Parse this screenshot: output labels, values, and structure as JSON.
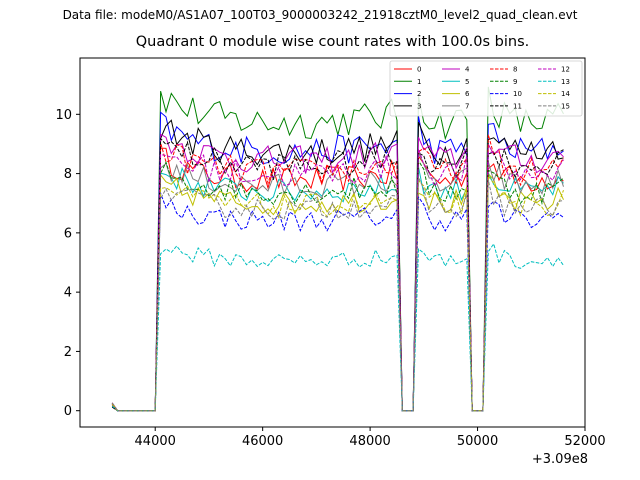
{
  "suptitle": "Data file: modeM0/AS1A07_100T03_9000003242_21918cztM0_level2_quad_clean.evt",
  "chart_data": {
    "type": "line",
    "title": "Quadrant 0 module wise count rates with 100.0s bins.",
    "x_offset_label": "+3.09e8",
    "xlim": [
      42600,
      52000
    ],
    "ylim": [
      -0.55,
      11.9
    ],
    "xticks": [
      44000,
      46000,
      48000,
      50000,
      52000
    ],
    "xtick_labels": [
      "44000",
      "46000",
      "48000",
      "50000",
      "52000"
    ],
    "yticks": [
      0,
      2,
      4,
      6,
      8,
      10
    ],
    "ytick_labels": [
      "0",
      "2",
      "4",
      "6",
      "8",
      "10"
    ],
    "segments": [
      {
        "start": 43200,
        "end": 44000,
        "kind": "off"
      },
      {
        "start": 44100,
        "end": 48500,
        "kind": "on"
      },
      {
        "start": 48600,
        "end": 48800,
        "kind": "off"
      },
      {
        "start": 48900,
        "end": 49800,
        "kind": "on"
      },
      {
        "start": 49900,
        "end": 50100,
        "kind": "off"
      },
      {
        "start": 50200,
        "end": 51600,
        "kind": "on"
      }
    ],
    "legend_position": "upper right",
    "series": [
      {
        "name": "0",
        "color": "#ff0000",
        "dash": "solid",
        "level": 8.0
      },
      {
        "name": "1",
        "color": "#008000",
        "dash": "solid",
        "level": 10.0
      },
      {
        "name": "2",
        "color": "#0000ff",
        "dash": "solid",
        "level": 9.0
      },
      {
        "name": "3",
        "color": "#000000",
        "dash": "solid",
        "level": 9.0
      },
      {
        "name": "4",
        "color": "#bf00bf",
        "dash": "solid",
        "level": 8.7
      },
      {
        "name": "5",
        "color": "#00bfbf",
        "dash": "solid",
        "level": 7.6
      },
      {
        "name": "6",
        "color": "#bfbf00",
        "dash": "solid",
        "level": 7.2
      },
      {
        "name": "7",
        "color": "#808080",
        "dash": "solid",
        "level": 7.8
      },
      {
        "name": "8",
        "color": "#ff0000",
        "dash": "dashed",
        "level": 8.3
      },
      {
        "name": "9",
        "color": "#008000",
        "dash": "dashed",
        "level": 7.6
      },
      {
        "name": "10",
        "color": "#0000ff",
        "dash": "dashed",
        "level": 6.6
      },
      {
        "name": "11",
        "color": "#000000",
        "dash": "dashed",
        "level": 8.5
      },
      {
        "name": "12",
        "color": "#bf00bf",
        "dash": "dashed",
        "level": 8.2
      },
      {
        "name": "13",
        "color": "#00bfbf",
        "dash": "dashed",
        "level": 5.2
      },
      {
        "name": "14",
        "color": "#bfbf00",
        "dash": "dashed",
        "level": 7.1
      },
      {
        "name": "15",
        "color": "#808080",
        "dash": "dashed",
        "level": 7.0
      }
    ]
  }
}
